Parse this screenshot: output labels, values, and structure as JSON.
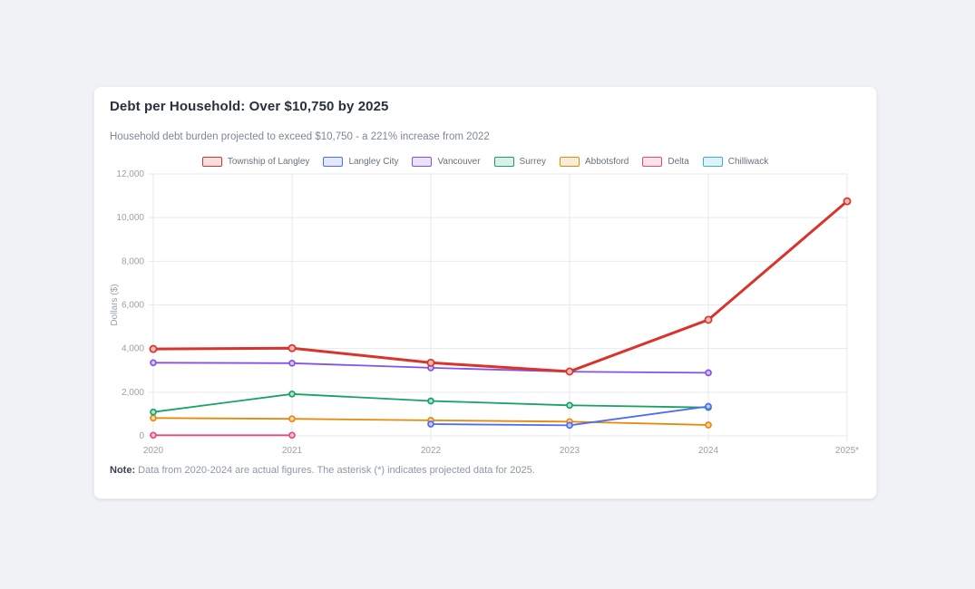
{
  "card": {
    "title": "Debt per Household: Over $10,750 by 2025",
    "subtitle": "Household debt burden projected to exceed $10,750 - a 221% increase from 2022",
    "note_label": "Note:",
    "note_text": " Data from 2020-2024 are actual figures. The asterisk (*) indicates projected data for 2025."
  },
  "chart_data": {
    "type": "line",
    "x": [
      "2020",
      "2021",
      "2022",
      "2023",
      "2024",
      "2025*"
    ],
    "ylabel": "Dollars ($)",
    "ylim": [
      0,
      12000
    ],
    "ytick_step": 2000,
    "yticks": [
      "0",
      "2,000",
      "4,000",
      "6,000",
      "8,000",
      "10,000",
      "12,000"
    ],
    "grid": true,
    "legend_position": "top",
    "grid_color": "#e7e9ec",
    "series": [
      {
        "name": "Township of Langley",
        "color": "#d9342b",
        "emphasis": true,
        "values": [
          3980,
          4020,
          3350,
          2950,
          5320,
          10750
        ]
      },
      {
        "name": "Langley City",
        "color": "#4c6ef5",
        "emphasis": false,
        "values": [
          null,
          null,
          540,
          480,
          1350,
          null
        ]
      },
      {
        "name": "Vancouver",
        "color": "#8452e6",
        "emphasis": false,
        "values": [
          3350,
          3330,
          3120,
          2940,
          2890,
          null
        ]
      },
      {
        "name": "Surrey",
        "color": "#18a266",
        "emphasis": false,
        "values": [
          1090,
          1920,
          1600,
          1400,
          1300,
          null
        ]
      },
      {
        "name": "Abbotsford",
        "color": "#e8890c",
        "emphasis": false,
        "values": [
          820,
          780,
          710,
          650,
          500,
          null
        ]
      },
      {
        "name": "Delta",
        "color": "#e64980",
        "emphasis": false,
        "values": [
          30,
          30,
          null,
          null,
          null,
          null
        ]
      },
      {
        "name": "Chilliwack",
        "color": "#33b5cc",
        "emphasis": false,
        "values": [
          null,
          null,
          null,
          null,
          null,
          null
        ]
      }
    ]
  }
}
